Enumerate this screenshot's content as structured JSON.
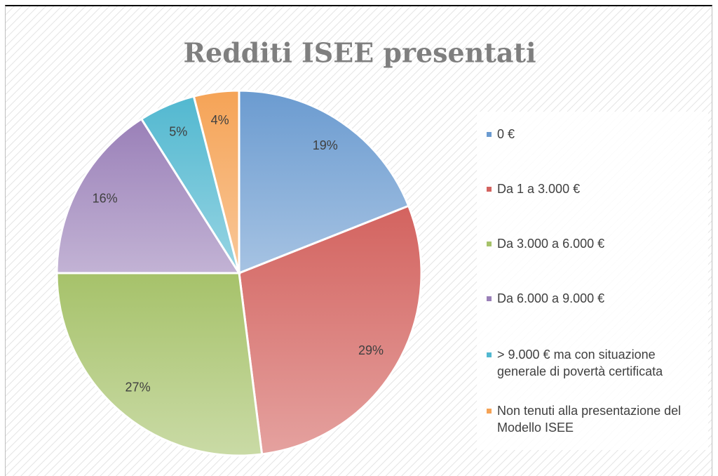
{
  "chart_data": {
    "type": "pie",
    "title": "Redditi ISEE presentati",
    "categories": [
      "0 €",
      "Da 1 a 3.000 €",
      "Da 3.000 a 6.000 €",
      "Da 6.000 a 9.000 €",
      "> 9.000 € ma con situazione generale di povertà certificata",
      "Non tenuti alla presentazione del Modello ISEE"
    ],
    "values": [
      19,
      29,
      27,
      16,
      5,
      4
    ],
    "value_labels": [
      "19%",
      "29%",
      "27%",
      "16%",
      "5%",
      "4%"
    ],
    "colors": [
      "#6b9bd0",
      "#d3635f",
      "#a6c26a",
      "#9a80b8",
      "#52b8d0",
      "#f5a356"
    ],
    "legend": "right"
  }
}
